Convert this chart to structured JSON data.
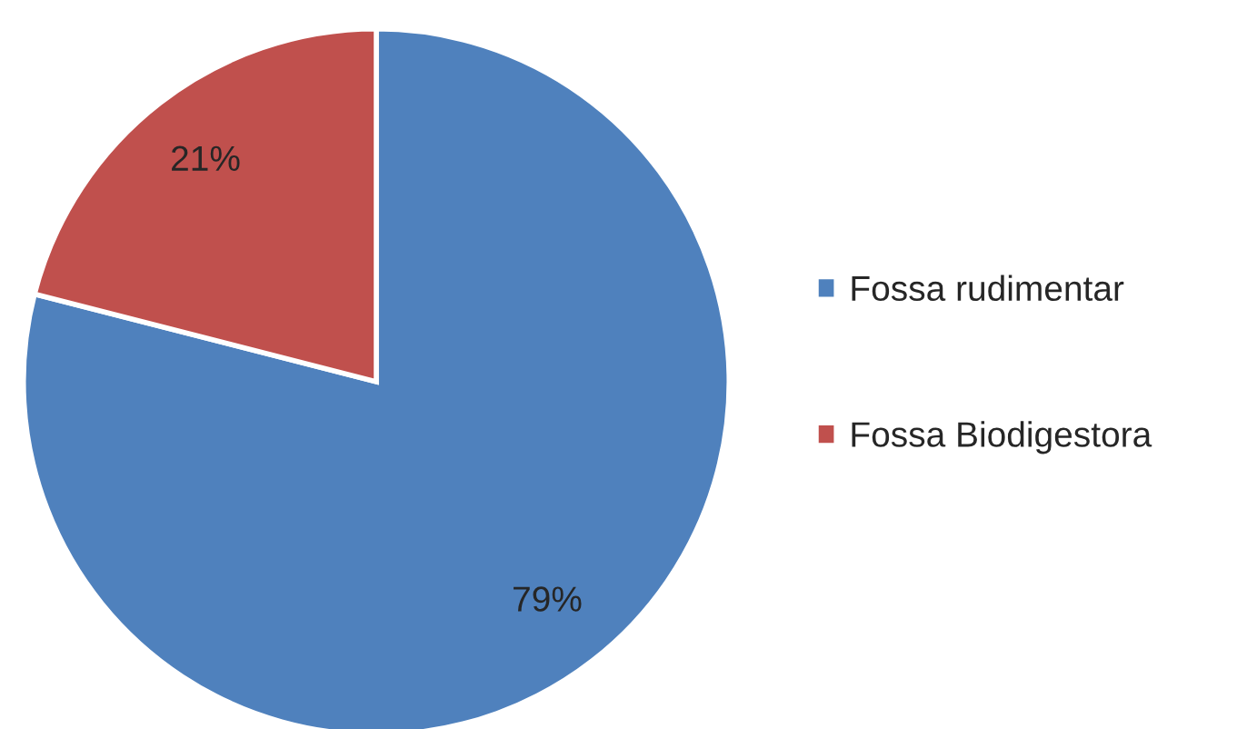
{
  "chart_data": {
    "type": "pie",
    "categories": [
      "Fossa rudimentar",
      "Fossa Biodigestora"
    ],
    "values": [
      79,
      21
    ],
    "colors": [
      "#4f81bd",
      "#c0504d"
    ],
    "value_labels": [
      "79%",
      "21%"
    ],
    "legend": "right"
  }
}
